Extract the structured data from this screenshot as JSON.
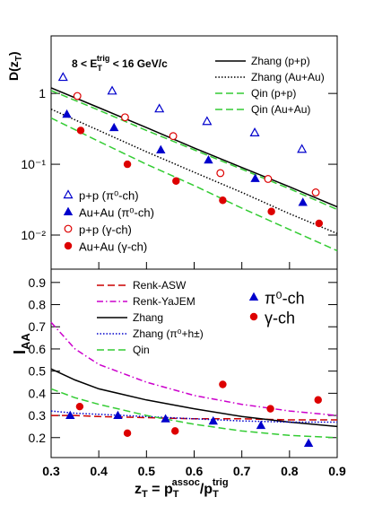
{
  "chart_data": [
    {
      "type": "scatter",
      "log_y": true,
      "ylabel": [
        "D(z",
        "T",
        ")"
      ],
      "annotation": [
        "8 < E",
        "T",
        "trig",
        " < 16 GeV/c"
      ],
      "xlim": [
        0.3,
        0.9
      ],
      "ylim": [
        0.0033,
        6.5
      ],
      "yticks": [
        {
          "value": 0.01,
          "label": "10⁻²"
        },
        {
          "value": 0.1,
          "label": "10⁻¹"
        },
        1
      ],
      "series": [
        {
          "name": "Zhang (p+p)",
          "kind": "line",
          "color": "#000000",
          "dash": "solid",
          "legend": "upper right",
          "x": [
            0.3,
            0.4,
            0.5,
            0.6,
            0.7,
            0.8,
            0.9
          ],
          "values": [
            1.2,
            0.63,
            0.33,
            0.17,
            0.09,
            0.048,
            0.025
          ]
        },
        {
          "name": "Zhang (Au+Au)",
          "kind": "line",
          "color": "#000000",
          "dash": "dotted",
          "legend": "upper right",
          "x": [
            0.3,
            0.4,
            0.5,
            0.6,
            0.7,
            0.8,
            0.9
          ],
          "values": [
            0.6,
            0.3,
            0.15,
            0.077,
            0.04,
            0.02,
            0.0105
          ]
        },
        {
          "name": "Qin (p+p)",
          "kind": "line",
          "color": "#33cc33",
          "dash": "dashed",
          "legend": "upper right",
          "x": [
            0.3,
            0.4,
            0.5,
            0.6,
            0.7,
            0.8,
            0.9
          ],
          "values": [
            1.1,
            0.58,
            0.3,
            0.16,
            0.085,
            0.045,
            0.023
          ]
        },
        {
          "name": "Qin (Au+Au)",
          "kind": "line",
          "color": "#33cc33",
          "dash": "dashed",
          "legend": "upper right",
          "x": [
            0.3,
            0.4,
            0.5,
            0.6,
            0.7,
            0.8,
            0.9
          ],
          "values": [
            0.45,
            0.21,
            0.1,
            0.05,
            0.024,
            0.012,
            0.006
          ]
        },
        {
          "name": "p+p (π⁰-ch)",
          "kind": "marker",
          "marker": "open-triangle",
          "color": "#0000cc",
          "legend": "lower left",
          "x": [
            0.325,
            0.428,
            0.527,
            0.627,
            0.727,
            0.826
          ],
          "values": [
            1.7,
            1.09,
            0.61,
            0.405,
            0.28,
            0.164
          ]
        },
        {
          "name": "Au+Au (π⁰-ch)",
          "kind": "marker",
          "marker": "triangle",
          "color": "#0000cc",
          "legend": "lower left",
          "x": [
            0.333,
            0.432,
            0.53,
            0.63,
            0.728,
            0.828
          ],
          "values": [
            0.51,
            0.33,
            0.16,
            0.115,
            0.063,
            0.029
          ]
        },
        {
          "name": "p+p (γ-ch)",
          "kind": "marker",
          "marker": "open-circle",
          "color": "#dd0000",
          "legend": "lower left",
          "x": [
            0.355,
            0.455,
            0.556,
            0.655,
            0.755,
            0.855
          ],
          "values": [
            0.92,
            0.46,
            0.25,
            0.075,
            0.062,
            0.04
          ]
        },
        {
          "name": "Au+Au (γ-ch)",
          "kind": "marker",
          "marker": "circle",
          "color": "#dd0000",
          "legend": "lower left",
          "x": [
            0.362,
            0.46,
            0.562,
            0.66,
            0.762,
            0.862
          ],
          "values": [
            0.3,
            0.1,
            0.058,
            0.031,
            0.0215,
            0.0146
          ]
        }
      ]
    },
    {
      "type": "scatter",
      "log_y": false,
      "ylabel": [
        "I",
        "AA"
      ],
      "xlabel": [
        "z",
        "T",
        " = p",
        "T",
        "assoc",
        "/p",
        "T",
        "trig"
      ],
      "xlim": [
        0.3,
        0.9
      ],
      "ylim": [
        0.11,
        0.96
      ],
      "xticks": [
        0.3,
        0.4,
        0.5,
        0.6,
        0.7,
        0.8,
        0.9
      ],
      "yticks": [
        0.2,
        0.3,
        0.4,
        0.5,
        0.6,
        0.7,
        0.8,
        0.9
      ],
      "series": [
        {
          "name": "Renk-ASW",
          "kind": "line",
          "color": "#cc0000",
          "dash": "dashed",
          "legend": "upper left",
          "x": [
            0.3,
            0.35,
            0.4,
            0.5,
            0.6,
            0.7,
            0.8,
            0.9
          ],
          "values": [
            0.3,
            0.3,
            0.295,
            0.29,
            0.285,
            0.285,
            0.28,
            0.28
          ]
        },
        {
          "name": "Renk-YaJEM",
          "kind": "line",
          "color": "#cc00cc",
          "dash": "dashdot",
          "legend": "upper left",
          "x": [
            0.3,
            0.35,
            0.4,
            0.5,
            0.6,
            0.7,
            0.8,
            0.9
          ],
          "values": [
            0.72,
            0.6,
            0.53,
            0.45,
            0.39,
            0.35,
            0.32,
            0.3
          ]
        },
        {
          "name": "Zhang",
          "kind": "line",
          "color": "#000000",
          "dash": "solid",
          "legend": "upper left",
          "x": [
            0.3,
            0.35,
            0.4,
            0.5,
            0.6,
            0.7,
            0.8,
            0.9
          ],
          "values": [
            0.51,
            0.46,
            0.42,
            0.37,
            0.33,
            0.295,
            0.27,
            0.25
          ]
        },
        {
          "name": "Zhang (π⁰+h±)",
          "kind": "line",
          "color": "#0000cc",
          "dash": "dotted",
          "legend": "upper left",
          "x": [
            0.3,
            0.35,
            0.4,
            0.5,
            0.6,
            0.7,
            0.8,
            0.9
          ],
          "values": [
            0.32,
            0.31,
            0.305,
            0.295,
            0.285,
            0.275,
            0.27,
            0.27
          ]
        },
        {
          "name": "Qin",
          "kind": "line",
          "color": "#33cc33",
          "dash": "dashed",
          "legend": "upper left",
          "x": [
            0.3,
            0.35,
            0.4,
            0.5,
            0.6,
            0.7,
            0.8,
            0.9
          ],
          "values": [
            0.42,
            0.38,
            0.35,
            0.3,
            0.26,
            0.23,
            0.21,
            0.2
          ]
        },
        {
          "name": "π⁰-ch",
          "kind": "marker",
          "marker": "triangle",
          "color": "#0000cc",
          "legend": "upper right",
          "x": [
            0.34,
            0.44,
            0.54,
            0.64,
            0.74,
            0.84
          ],
          "values": [
            0.3,
            0.3,
            0.285,
            0.275,
            0.255,
            0.175
          ]
        },
        {
          "name": "γ-ch",
          "kind": "marker",
          "marker": "circle",
          "color": "#dd0000",
          "legend": "upper right",
          "x": [
            0.36,
            0.46,
            0.56,
            0.66,
            0.76,
            0.86
          ],
          "values": [
            0.34,
            0.22,
            0.23,
            0.44,
            0.33,
            0.37
          ]
        }
      ]
    }
  ]
}
